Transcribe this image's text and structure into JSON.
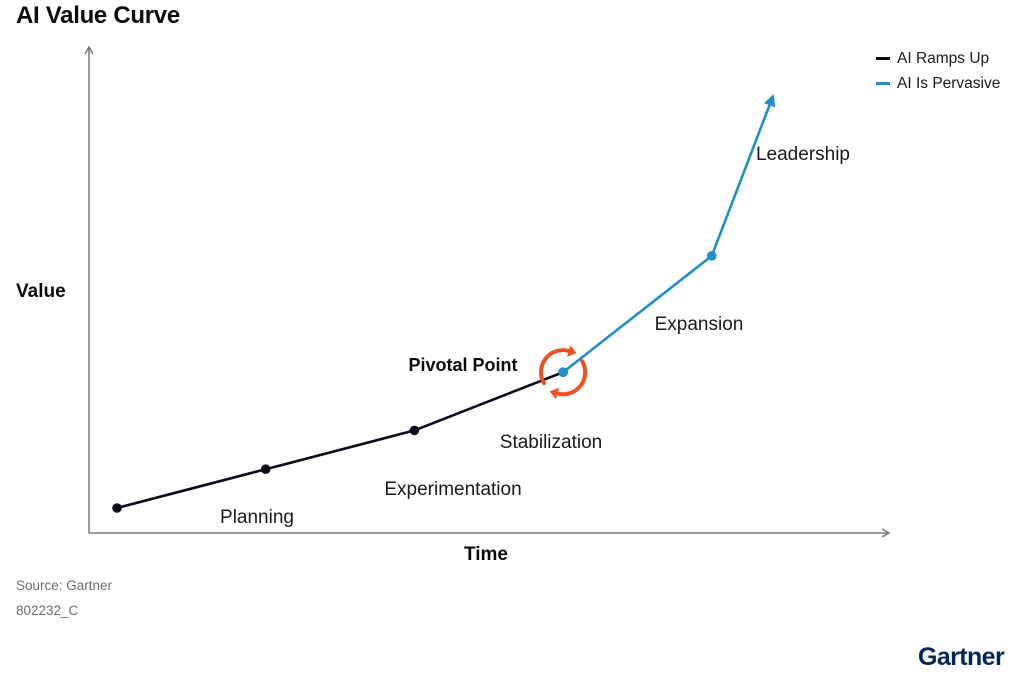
{
  "chart_data": {
    "type": "line",
    "title": "AI Value Curve",
    "xlabel": "Time",
    "ylabel": "Value",
    "grid": false,
    "legend_position": "top-right",
    "series": [
      {
        "name": "AI Ramps Up",
        "color": "#0b0b1a",
        "points": [
          {
            "x": 1,
            "y": 1
          },
          {
            "x": 2,
            "y": 2
          },
          {
            "x": 3,
            "y": 3
          },
          {
            "x": 4,
            "y": 4.5
          }
        ]
      },
      {
        "name": "AI Is Pervasive",
        "color": "#1f8fc6",
        "points": [
          {
            "x": 4,
            "y": 4.5
          },
          {
            "x": 5,
            "y": 7.5
          },
          {
            "x": 5.4,
            "y": 11.5
          }
        ],
        "arrow_end": true
      }
    ],
    "stages": [
      {
        "label": "Planning"
      },
      {
        "label": "Experimentation"
      },
      {
        "label": "Stabilization"
      },
      {
        "label": "Expansion"
      },
      {
        "label": "Leadership"
      }
    ],
    "annotations": [
      {
        "label": "Pivotal Point",
        "icon": "cycle-arrows-icon",
        "color": "#f04e23"
      }
    ]
  },
  "footer": {
    "source": "Source: Gartner",
    "doc_id": "802232_C"
  },
  "brand": {
    "logo_text": "Gartner",
    "logo_color": "#002856"
  },
  "axis_color": "#7a7a7a"
}
